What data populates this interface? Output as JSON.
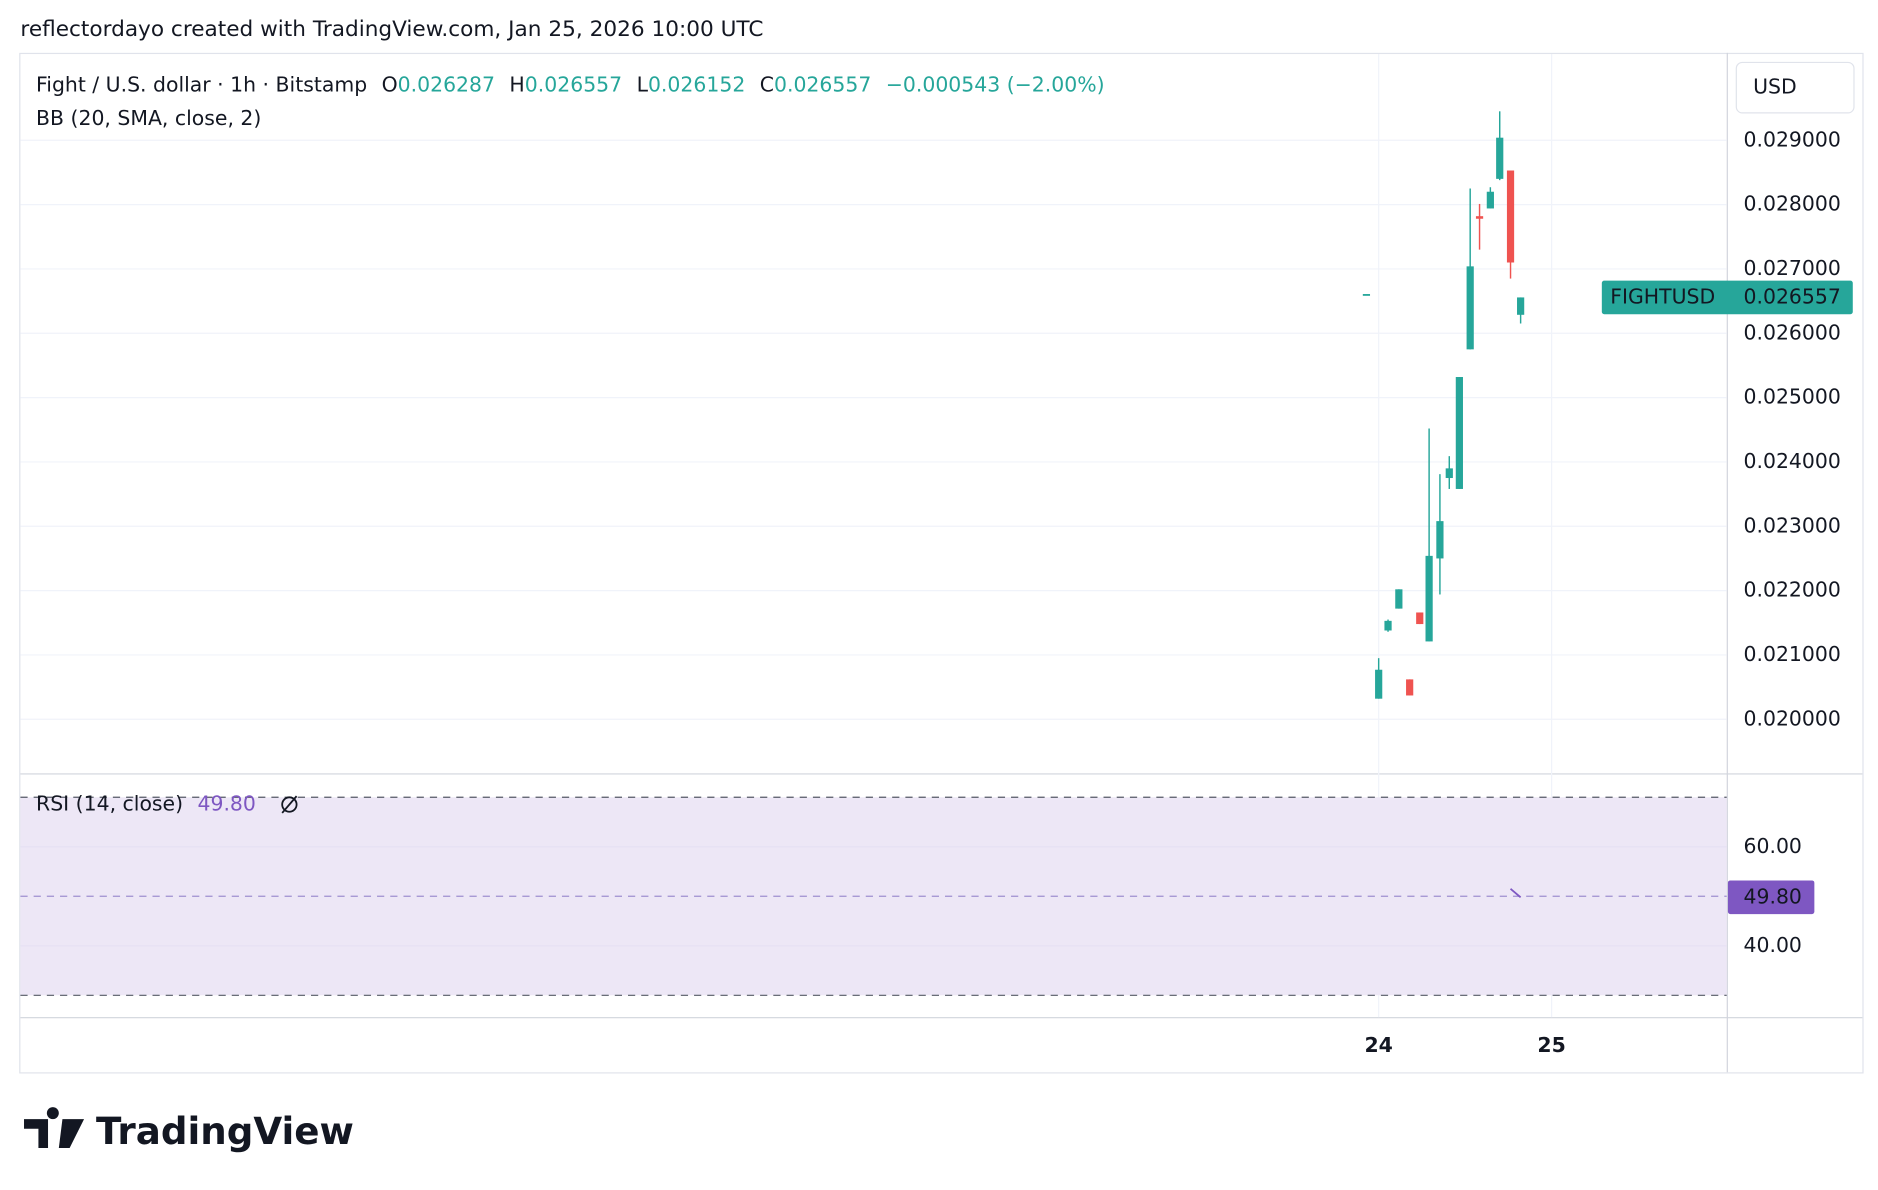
{
  "header": {
    "attribution": "reflectordayo created with TradingView.com, Jan 25, 2026 10:00 UTC"
  },
  "footer": {
    "logo": "TradingView"
  },
  "chart_data": [
    {
      "type": "candlestick",
      "title": "Fight / U.S. dollar · 1h · Bitstamp",
      "legend_ohlc": [
        {
          "label": "O",
          "value": 0.026287
        },
        {
          "label": "H",
          "value": 0.026557
        },
        {
          "label": "L",
          "value": 0.026152
        },
        {
          "label": "C",
          "value": 0.026557
        }
      ],
      "change": "−0.000543 (−2.00%)",
      "indicator": "BB (20, SMA, close, 2)",
      "currency": "USD",
      "up_color": "#26a69a",
      "down_color": "#ef5350",
      "x": [
        -1.7,
        0,
        1.3,
        2.8,
        4.3,
        5.7,
        7,
        8.5,
        9.8,
        11.2,
        12.7,
        14,
        15.5,
        16.8,
        18.3,
        19.7
      ],
      "open": [
        0.02661,
        0.02032,
        0.02138,
        0.02172,
        0.02062,
        0.02166,
        0.02121,
        0.0225,
        0.02375,
        0.02358,
        0.02575,
        0.02782,
        0.02794,
        0.0284,
        0.02853,
        0.026287
      ],
      "high": [
        0.02661,
        0.02095,
        0.02155,
        0.02202,
        0.02062,
        0.02166,
        0.02452,
        0.02381,
        0.02409,
        0.02532,
        0.02825,
        0.02801,
        0.02827,
        0.02945,
        0.02853,
        0.026557
      ],
      "low": [
        0.02661,
        0.02032,
        0.02136,
        0.02172,
        0.02037,
        0.02148,
        0.02121,
        0.02194,
        0.02358,
        0.02358,
        0.02575,
        0.0273,
        0.02794,
        0.02838,
        0.02685,
        0.026152
      ],
      "close": [
        0.02661,
        0.02077,
        0.02153,
        0.02202,
        0.02037,
        0.02148,
        0.02254,
        0.02308,
        0.0239,
        0.02532,
        0.02704,
        0.02778,
        0.0282,
        0.02904,
        0.0271,
        0.026557
      ],
      "xlim": [
        -188.5,
        48.3
      ],
      "xticks": [
        {
          "value": 0,
          "label": "24"
        },
        {
          "value": 24,
          "label": "25"
        }
      ],
      "ylim": [
        0.01916,
        0.03034
      ],
      "yticks": [
        {
          "value": 0.02,
          "label": "0.020000"
        },
        {
          "value": 0.021,
          "label": "0.021000"
        },
        {
          "value": 0.022,
          "label": "0.022000"
        },
        {
          "value": 0.023,
          "label": "0.023000"
        },
        {
          "value": 0.024,
          "label": "0.024000"
        },
        {
          "value": 0.025,
          "label": "0.025000"
        },
        {
          "value": 0.026,
          "label": "0.026000"
        },
        {
          "value": 0.027,
          "label": "0.027000"
        },
        {
          "value": 0.028,
          "label": "0.028000"
        },
        {
          "value": 0.029,
          "label": "0.029000"
        }
      ],
      "grid": true,
      "last_price": {
        "symbol": "FIGHTUSD",
        "value": 0.026557,
        "label": "0.026557"
      }
    },
    {
      "type": "line",
      "title": "RSI (14, close)",
      "last_value": {
        "value": 49.8,
        "label": "49.80"
      },
      "color": "#7e57c2",
      "x": [
        18.3,
        19.7
      ],
      "values": [
        51.5,
        49.8
      ],
      "xlim": [
        -188.5,
        48.3
      ],
      "ylim": [
        25.6,
        74.6
      ],
      "yticks": [
        {
          "value": 60,
          "label": "60.00"
        },
        {
          "value": 40,
          "label": "40.00"
        }
      ],
      "bands": [
        70,
        50,
        30
      ],
      "band_fill": "#ede7f6",
      "grid": true
    }
  ]
}
